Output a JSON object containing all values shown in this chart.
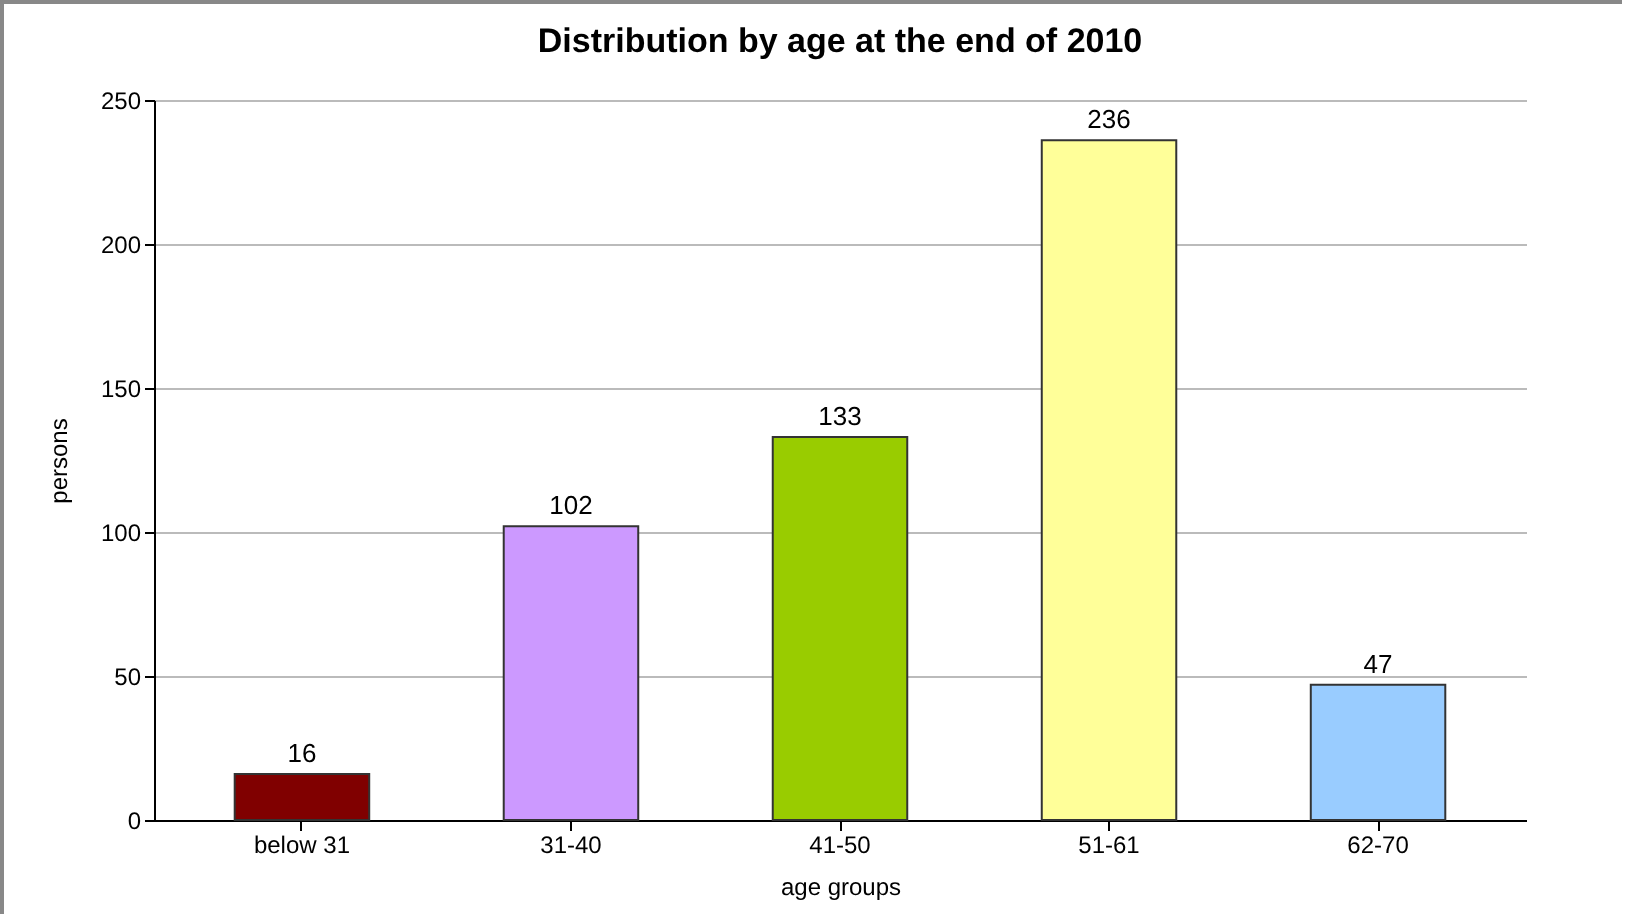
{
  "chart_data": {
    "type": "bar",
    "title": "Distribution by age at the end of 2010",
    "xlabel": "age groups",
    "ylabel": "persons",
    "categories": [
      "below 31",
      "31-40",
      "41-50",
      "51-61",
      "62-70"
    ],
    "values": [
      16,
      102,
      133,
      236,
      47
    ],
    "colors": [
      "#800000",
      "#cc99ff",
      "#99cc00",
      "#ffff99",
      "#99ccff"
    ],
    "ylim": [
      0,
      250
    ],
    "yticks": [
      0,
      50,
      100,
      150,
      200,
      250
    ],
    "grid": "y",
    "data_labels": true
  }
}
